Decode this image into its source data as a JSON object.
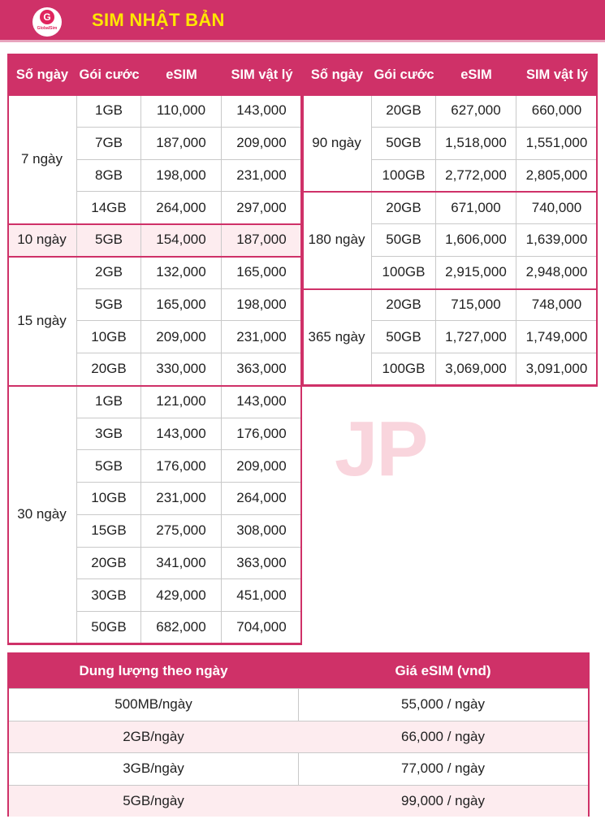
{
  "header": {
    "title": "SIM NHẬT BẢN",
    "logo_letter": "G",
    "logo_text": "GlobalSim",
    "brand_color": "#cf3168",
    "title_color": "#ffe600"
  },
  "watermark": "JP",
  "columns": [
    "Số ngày",
    "Gói cước",
    "eSIM",
    "SIM vật lý"
  ],
  "left_table": [
    {
      "days": "7 ngày",
      "highlight": false,
      "rows": [
        {
          "data": "1GB",
          "esim": "110,000",
          "physical": "143,000"
        },
        {
          "data": "7GB",
          "esim": "187,000",
          "physical": "209,000"
        },
        {
          "data": "8GB",
          "esim": "198,000",
          "physical": "231,000"
        },
        {
          "data": "14GB",
          "esim": "264,000",
          "physical": "297,000"
        }
      ]
    },
    {
      "days": "10 ngày",
      "highlight": true,
      "rows": [
        {
          "data": "5GB",
          "esim": "154,000",
          "physical": "187,000"
        }
      ]
    },
    {
      "days": "15 ngày",
      "highlight": false,
      "rows": [
        {
          "data": "2GB",
          "esim": "132,000",
          "physical": "165,000"
        },
        {
          "data": "5GB",
          "esim": "165,000",
          "physical": "198,000"
        },
        {
          "data": "10GB",
          "esim": "209,000",
          "physical": "231,000"
        },
        {
          "data": "20GB",
          "esim": "330,000",
          "physical": "363,000"
        }
      ]
    },
    {
      "days": "30 ngày",
      "highlight": false,
      "rows": [
        {
          "data": "1GB",
          "esim": "121,000",
          "physical": "143,000"
        },
        {
          "data": "3GB",
          "esim": "143,000",
          "physical": "176,000"
        },
        {
          "data": "5GB",
          "esim": "176,000",
          "physical": "209,000"
        },
        {
          "data": "10GB",
          "esim": "231,000",
          "physical": "264,000"
        },
        {
          "data": "15GB",
          "esim": "275,000",
          "physical": "308,000"
        },
        {
          "data": "20GB",
          "esim": "341,000",
          "physical": "363,000"
        },
        {
          "data": "30GB",
          "esim": "429,000",
          "physical": "451,000"
        },
        {
          "data": "50GB",
          "esim": "682,000",
          "physical": "704,000"
        }
      ]
    }
  ],
  "right_table": [
    {
      "days": "90 ngày",
      "highlight": false,
      "rows": [
        {
          "data": "20GB",
          "esim": "627,000",
          "physical": "660,000"
        },
        {
          "data": "50GB",
          "esim": "1,518,000",
          "physical": "1,551,000"
        },
        {
          "data": "100GB",
          "esim": "2,772,000",
          "physical": "2,805,000"
        }
      ]
    },
    {
      "days": "180 ngày",
      "highlight": false,
      "rows": [
        {
          "data": "20GB",
          "esim": "671,000",
          "physical": "740,000"
        },
        {
          "data": "50GB",
          "esim": "1,606,000",
          "physical": "1,639,000"
        },
        {
          "data": "100GB",
          "esim": "2,915,000",
          "physical": "2,948,000"
        }
      ]
    },
    {
      "days": "365 ngày",
      "highlight": false,
      "rows": [
        {
          "data": "20GB",
          "esim": "715,000",
          "physical": "748,000"
        },
        {
          "data": "50GB",
          "esim": "1,727,000",
          "physical": "1,749,000"
        },
        {
          "data": "100GB",
          "esim": "3,069,000",
          "physical": "3,091,000"
        }
      ]
    }
  ],
  "daily": {
    "headers": [
      "Dung lượng theo ngày",
      "Giá eSIM (vnd)"
    ],
    "rows": [
      {
        "capacity": "500MB/ngày",
        "price": "55,000 / ngày"
      },
      {
        "capacity": "2GB/ngày",
        "price": "66,000 / ngày"
      },
      {
        "capacity": "3GB/ngày",
        "price": "77,000 / ngày"
      },
      {
        "capacity": "5GB/ngày",
        "price": "99,000 / ngày"
      }
    ]
  }
}
